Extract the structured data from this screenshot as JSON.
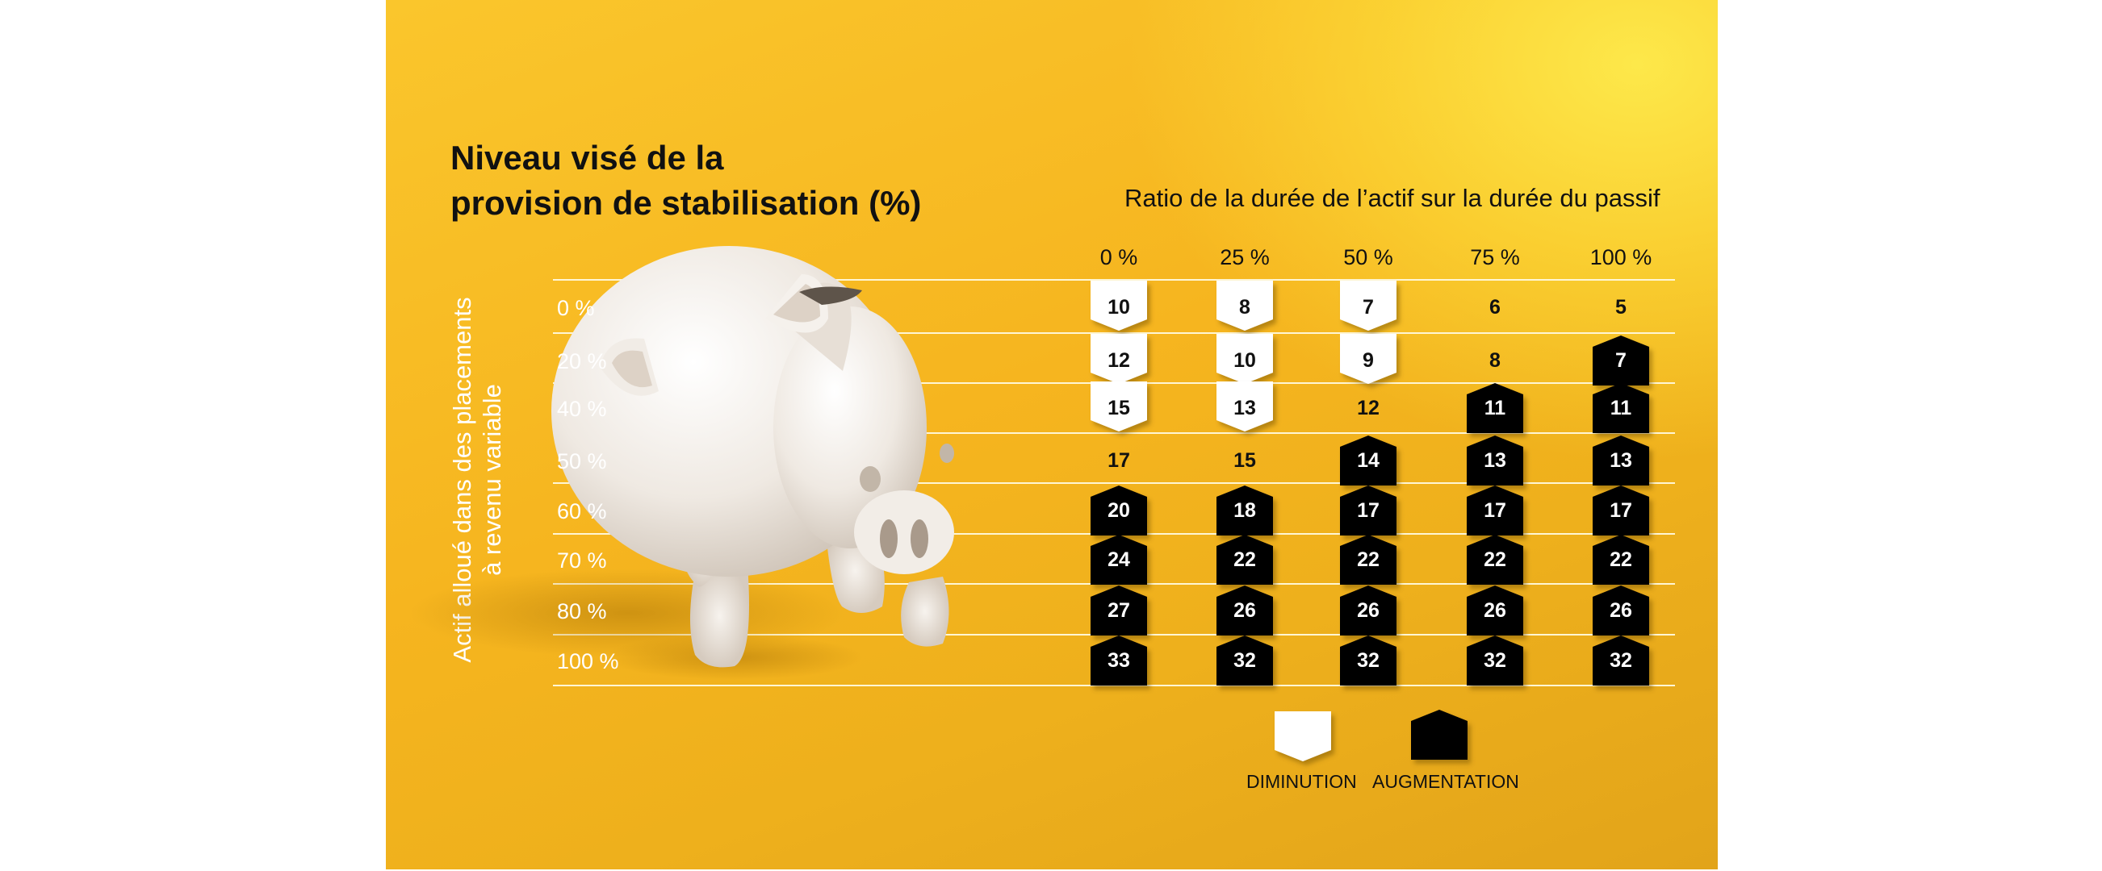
{
  "chart_data": {
    "type": "table",
    "title": [
      "Niveau visé de la",
      "provision de stabilisation (%)"
    ],
    "xlabel": "Ratio de la durée de l’actif  sur la durée du passif",
    "ylabel": [
      "Actif alloué dans des placements",
      "à revenu variable"
    ],
    "columns": [
      "0 %",
      "25 %",
      "50 %",
      "75 %",
      "100 %"
    ],
    "rows": [
      "0 %",
      "20 %",
      "40 %",
      "50 %",
      "60 %",
      "70 %",
      "80 %",
      "100 %"
    ],
    "values": [
      [
        10,
        8,
        7,
        6,
        5
      ],
      [
        12,
        10,
        9,
        8,
        7
      ],
      [
        15,
        13,
        12,
        11,
        11
      ],
      [
        17,
        15,
        14,
        13,
        13
      ],
      [
        20,
        18,
        17,
        17,
        17
      ],
      [
        24,
        22,
        22,
        22,
        22
      ],
      [
        27,
        26,
        26,
        26,
        26
      ],
      [
        33,
        32,
        32,
        32,
        32
      ]
    ],
    "change": [
      [
        "down",
        "down",
        "down",
        "none",
        "none"
      ],
      [
        "down",
        "down",
        "down",
        "none",
        "up"
      ],
      [
        "down",
        "down",
        "none",
        "up",
        "up"
      ],
      [
        "none",
        "none",
        "up",
        "up",
        "up"
      ],
      [
        "up",
        "up",
        "up",
        "up",
        "up"
      ],
      [
        "up",
        "up",
        "up",
        "up",
        "up"
      ],
      [
        "up",
        "up",
        "up",
        "up",
        "up"
      ],
      [
        "up",
        "up",
        "up",
        "up",
        "up"
      ]
    ],
    "legend": [
      {
        "key": "down",
        "label": "DIMINUTION",
        "color": "#ffffff"
      },
      {
        "key": "up",
        "label": "AUGMENTATION",
        "color": "#000000"
      }
    ]
  },
  "colors": {
    "background": "#f6b820",
    "text_dark": "#111111",
    "text_light": "#ffffff",
    "grid": "#fff6d4",
    "badge_down": "#ffffff",
    "badge_up": "#000000"
  },
  "illustration": "white-piggy-bank"
}
